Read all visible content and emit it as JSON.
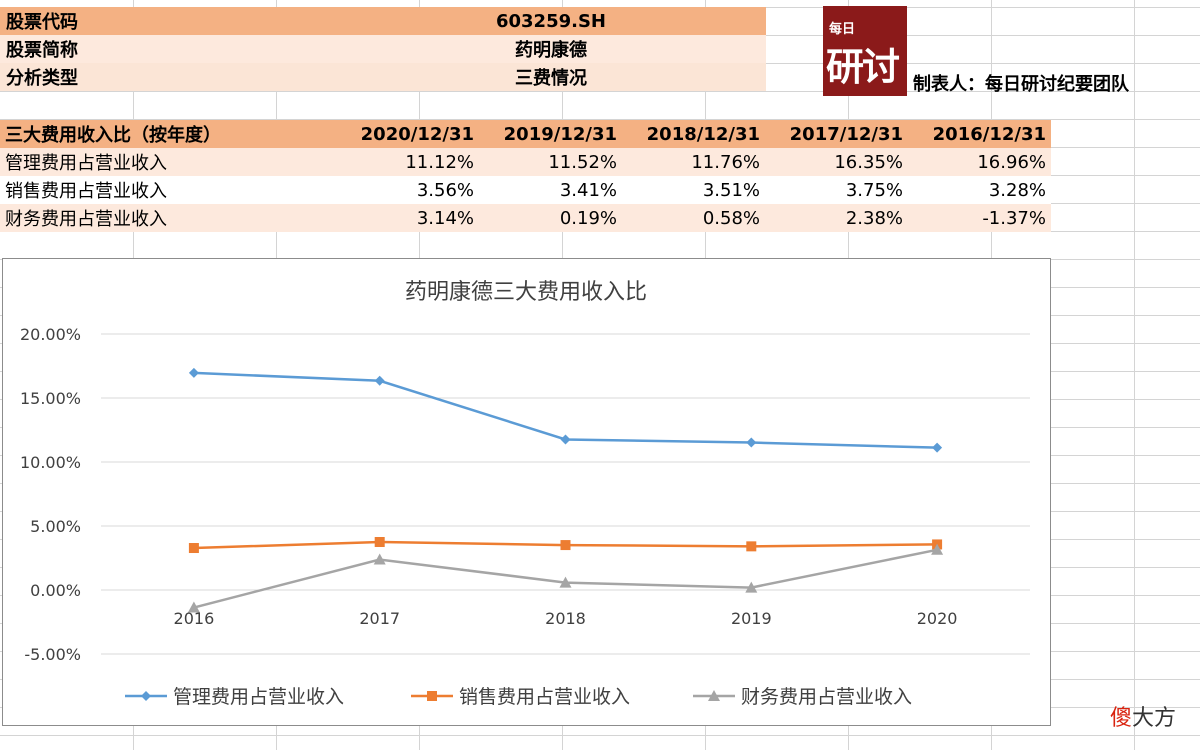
{
  "info": {
    "stock_code_label": "股票代码",
    "stock_code_value": "603259.SH",
    "stock_name_label": "股票简称",
    "stock_name_value": "药明康德",
    "analysis_type_label": "分析类型",
    "analysis_type_value": "三费情况"
  },
  "logo": {
    "small_text": "每日",
    "big_text": "研讨"
  },
  "maker": "制表人：每日研讨纪要团队",
  "table": {
    "header": [
      "三大费用收入比（按年度）",
      "2020/12/31",
      "2019/12/31",
      "2018/12/31",
      "2017/12/31",
      "2016/12/31"
    ],
    "rows": [
      {
        "name": "管理费用占营业收入",
        "values": [
          "11.12%",
          "11.52%",
          "11.76%",
          "16.35%",
          "16.96%"
        ]
      },
      {
        "name": "销售费用占营业收入",
        "values": [
          "3.56%",
          "3.41%",
          "3.51%",
          "3.75%",
          "3.28%"
        ]
      },
      {
        "name": "财务费用占营业收入",
        "values": [
          "3.14%",
          "0.19%",
          "0.58%",
          "2.38%",
          "-1.37%"
        ]
      }
    ]
  },
  "colors": {
    "series1": "#5b9bd5",
    "series2": "#ed7d31",
    "series3": "#a5a5a5",
    "header_fill": "#f4b183",
    "band_fill": "#fde9dd",
    "logo_bg": "#8b1a1a"
  },
  "chart_data": {
    "type": "line",
    "title": "药明康德三大费用收入比",
    "categories": [
      "2016",
      "2017",
      "2018",
      "2019",
      "2020"
    ],
    "ylim": [
      -5,
      20
    ],
    "yticks": [
      -5,
      0,
      5,
      10,
      15,
      20
    ],
    "ytick_labels": [
      "-5.00%",
      "0.00%",
      "5.00%",
      "10.00%",
      "15.00%",
      "20.00%"
    ],
    "grid": true,
    "legend_position": "bottom",
    "series": [
      {
        "name": "管理费用占营业收入",
        "marker": "diamond",
        "values": [
          16.96,
          16.35,
          11.76,
          11.52,
          11.12
        ]
      },
      {
        "name": "销售费用占营业收入",
        "marker": "square",
        "values": [
          3.28,
          3.75,
          3.51,
          3.41,
          3.56
        ]
      },
      {
        "name": "财务费用占营业收入",
        "marker": "triangle",
        "values": [
          -1.37,
          2.38,
          0.58,
          0.19,
          3.14
        ]
      }
    ]
  },
  "watermark": {
    "red": "傻",
    "rest": "大方"
  }
}
